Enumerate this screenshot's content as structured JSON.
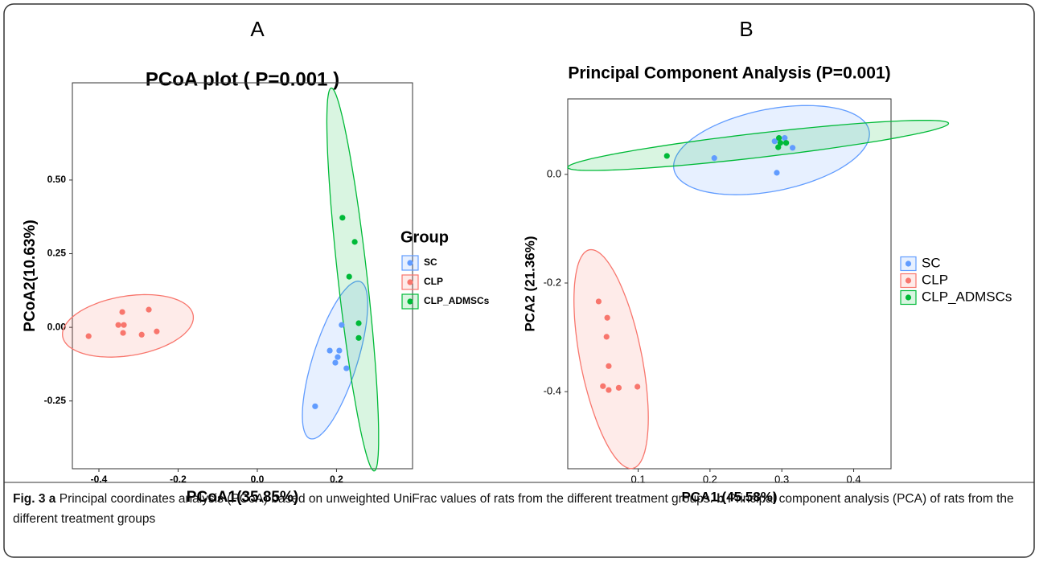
{
  "chart_data": [
    {
      "type": "scatter",
      "panel_label": "A",
      "title": "PCoA plot ( P=0.001 )",
      "x_label": "PCoA1(35.85%)",
      "y_label": "PCoA2(10.63%)",
      "legend_title": "Group",
      "legend": "right",
      "xlim": [
        -0.467,
        0.392
      ],
      "ylim": [
        -0.48,
        0.83
      ],
      "xticks": [
        -0.4,
        -0.2,
        {
          "value": 0,
          "label": "0.0"
        },
        0.2
      ],
      "yticks": [
        {
          "value": 0.5,
          "label": "0.50"
        },
        0.25,
        {
          "value": 0,
          "label": "0.00"
        },
        -0.25
      ],
      "ellipse": true,
      "series": [
        {
          "name": "SC",
          "color": "#619CFF",
          "x": [
            0.213,
            0.183,
            0.207,
            0.225,
            0.203,
            0.197,
            0.146
          ],
          "values": [
            0.008,
            -0.079,
            -0.079,
            -0.139,
            -0.101,
            -0.12,
            -0.268
          ]
        },
        {
          "name": "CLP",
          "color": "#F8766D",
          "x": [
            -0.426,
            -0.341,
            -0.351,
            -0.337,
            -0.339,
            -0.292,
            -0.254,
            -0.274
          ],
          "values": [
            -0.03,
            0.052,
            0.008,
            0.008,
            -0.019,
            -0.025,
            -0.014,
            0.06
          ]
        },
        {
          "name": "CLP_ADMSCs",
          "color": "#00BA38",
          "x": [
            0.215,
            0.246,
            0.232,
            0.256,
            0.256
          ],
          "values": [
            0.372,
            0.29,
            0.172,
            0.014,
            -0.036
          ]
        }
      ]
    },
    {
      "type": "scatter",
      "panel_label": "B",
      "title": "Principal Component Analysis (P=0.001)",
      "x_label": "PCA1 (45.58%)",
      "y_label": "PCA2 (21.36%)",
      "legend": "right",
      "xlim": [
        0.002,
        0.452
      ],
      "ylim": [
        -0.542,
        0.139
      ],
      "xticks": [
        0.1,
        0.2,
        0.3,
        0.4
      ],
      "yticks": [
        {
          "value": 0,
          "label": "0.0"
        },
        -0.2,
        -0.4
      ],
      "ellipse": true,
      "series": [
        {
          "name": "SC",
          "color": "#619CFF",
          "x": [
            0.206,
            0.293,
            0.29,
            0.304,
            0.315,
            0.306
          ],
          "values": [
            0.03,
            0.003,
            0.061,
            0.067,
            0.049,
            0.058
          ]
        },
        {
          "name": "CLP",
          "color": "#F8766D",
          "x": [
            0.045,
            0.057,
            0.056,
            0.059,
            0.051,
            0.059,
            0.073,
            0.099
          ],
          "values": [
            -0.234,
            -0.264,
            -0.299,
            -0.353,
            -0.39,
            -0.397,
            -0.393,
            -0.391
          ]
        },
        {
          "name": "CLP_ADMSCs",
          "color": "#00BA38",
          "x": [
            0.14,
            0.296,
            0.298,
            0.295,
            0.306
          ],
          "values": [
            0.034,
            0.067,
            0.058,
            0.05,
            0.058
          ]
        }
      ]
    }
  ],
  "caption": {
    "figure": "Fig. 3",
    "part_a": "a",
    "text_a": "Principal coordinates analysis (PCoA) based on unweighted UniFrac values of rats from the different treatment groups.",
    "part_b": "b",
    "text_b": "Principal component analysis (PCA) of rats from the different treatment groups"
  }
}
